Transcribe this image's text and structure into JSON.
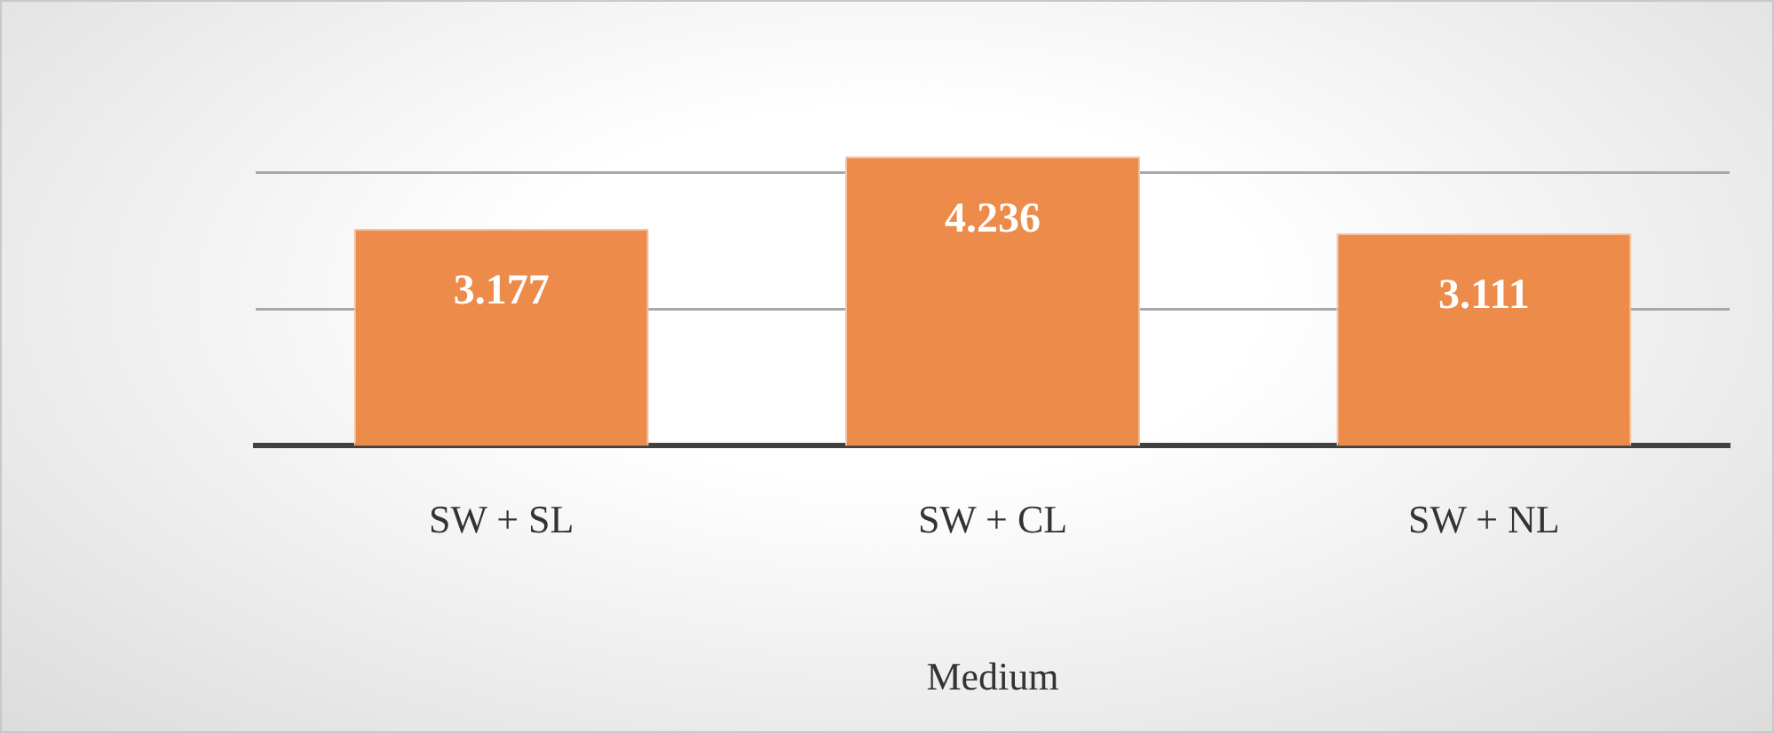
{
  "chart_data": {
    "type": "bar",
    "xlabel": "Medium",
    "categories": [
      "SW + SL",
      "SW + CL",
      "SW + NL"
    ],
    "values": [
      3.177,
      4.236,
      3.111
    ],
    "color": "#ed8b4a",
    "ref_lines": [
      {
        "axis": "y",
        "value": 2,
        "color": "#a8a8a8"
      },
      {
        "axis": "y",
        "value": 4,
        "color": "#a8a8a8"
      }
    ],
    "tick_labels": "x",
    "data_labels": true,
    "legend": false
  }
}
